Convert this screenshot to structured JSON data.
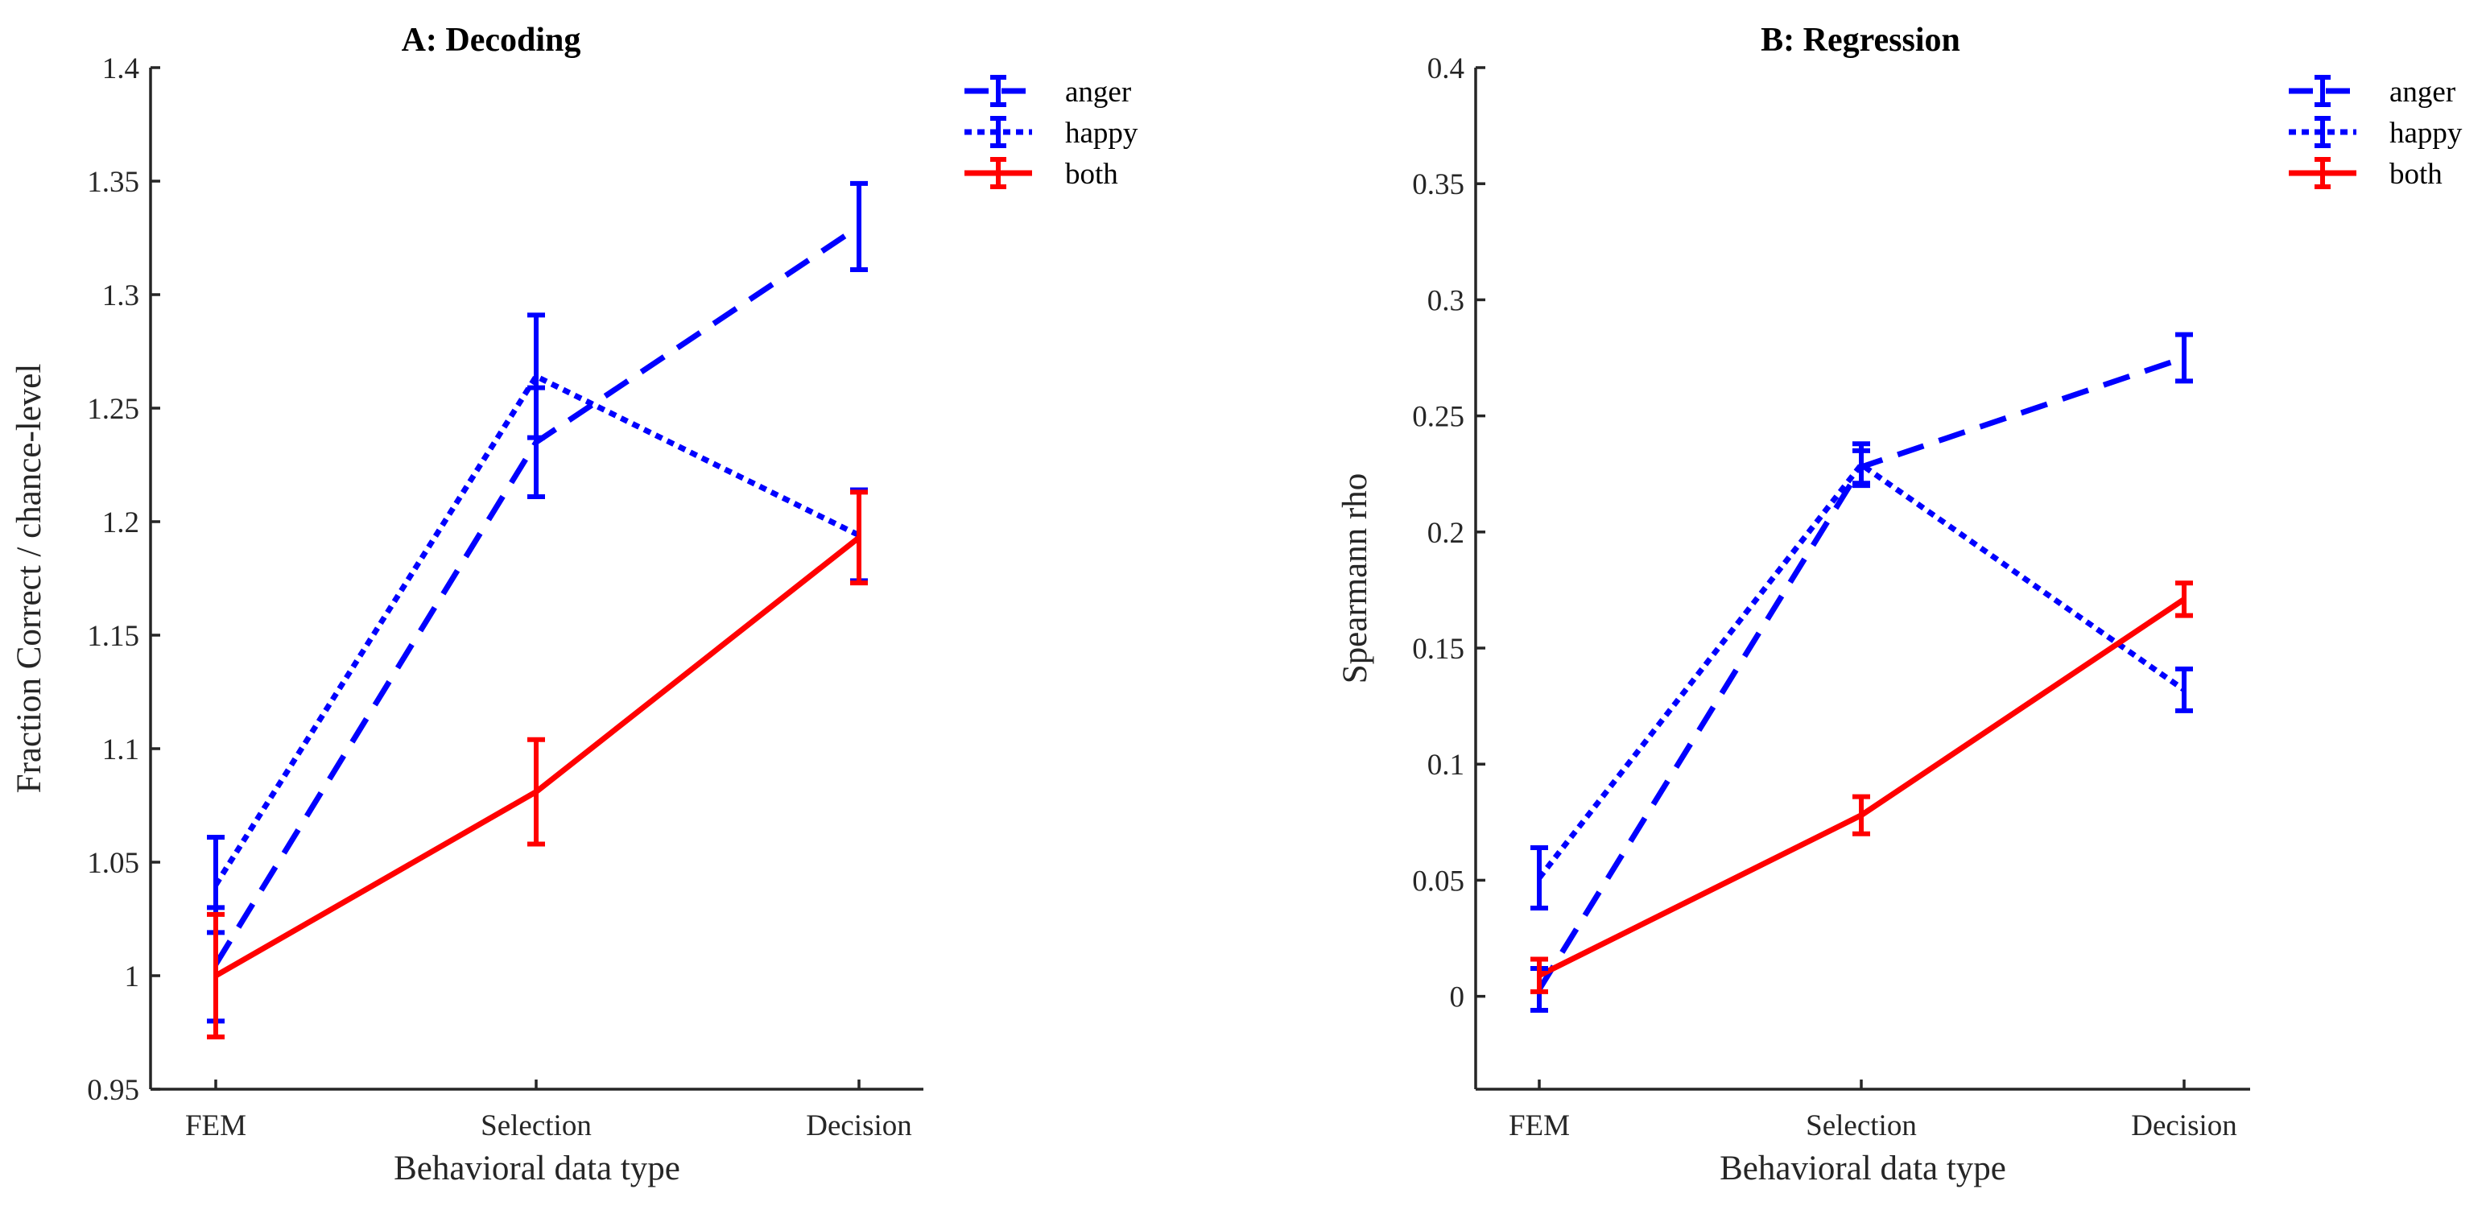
{
  "colors": {
    "anger": "#0000ff",
    "happy": "#0000ff",
    "both": "#ff0000",
    "axis": "#262626"
  },
  "chart_data": [
    {
      "type": "line",
      "title": "A: Decoding",
      "xlabel": "Behavioral data type",
      "ylabel": "Fraction Correct / chance-level",
      "categories": [
        "FEM",
        "Selection",
        "Decision"
      ],
      "ylim": [
        0.95,
        1.4
      ],
      "yticks": [
        0.95,
        1,
        1.05,
        1.1,
        1.15,
        1.2,
        1.25,
        1.3,
        1.35,
        1.4
      ],
      "ytick_labels": [
        "0.95",
        "1",
        "1.05",
        "1.1",
        "1.15",
        "1.2",
        "1.25",
        "1.3",
        "1.35",
        "1.4"
      ],
      "legend_position": "top-right",
      "grid": false,
      "series": [
        {
          "name": "anger",
          "style": "dashed",
          "color": "#0000ff",
          "values": [
            1.005,
            1.235,
            1.33
          ],
          "errors": [
            0.025,
            0.024,
            0.019
          ]
        },
        {
          "name": "happy",
          "style": "dotted",
          "color": "#0000ff",
          "values": [
            1.04,
            1.264,
            1.194
          ],
          "errors": [
            0.021,
            0.027,
            0.02
          ]
        },
        {
          "name": "both",
          "style": "solid",
          "color": "#ff0000",
          "values": [
            1.0,
            1.081,
            1.193
          ],
          "errors": [
            0.027,
            0.023,
            0.02
          ]
        }
      ]
    },
    {
      "type": "line",
      "title": "B: Regression",
      "xlabel": "Behavioral data type",
      "ylabel": "Spearmann rho",
      "categories": [
        "FEM",
        "Selection",
        "Decision"
      ],
      "ylim": [
        -0.04,
        0.4
      ],
      "yticks": [
        0,
        0.05,
        0.1,
        0.15,
        0.2,
        0.25,
        0.3,
        0.35,
        0.4
      ],
      "ytick_labels": [
        "0",
        "0.05",
        "0.1",
        "0.15",
        "0.2",
        "0.25",
        "0.3",
        "0.35",
        "0.4"
      ],
      "legend_position": "top-right",
      "grid": false,
      "series": [
        {
          "name": "anger",
          "style": "dashed",
          "color": "#0000ff",
          "values": [
            0.003,
            0.228,
            0.275
          ],
          "errors": [
            0.009,
            0.007,
            0.01
          ]
        },
        {
          "name": "happy",
          "style": "dotted",
          "color": "#0000ff",
          "values": [
            0.051,
            0.229,
            0.132
          ],
          "errors": [
            0.013,
            0.009,
            0.009
          ]
        },
        {
          "name": "both",
          "style": "solid",
          "color": "#ff0000",
          "values": [
            0.009,
            0.078,
            0.171
          ],
          "errors": [
            0.007,
            0.008,
            0.007
          ]
        }
      ]
    }
  ]
}
